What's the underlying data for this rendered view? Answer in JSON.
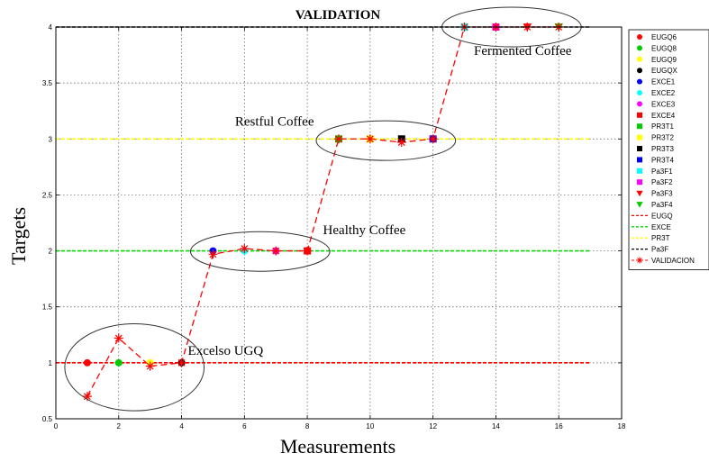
{
  "chart_data": {
    "type": "scatter",
    "title": "VALIDATION",
    "xlabel": "Measurements",
    "ylabel": "Targets",
    "xlim": [
      0,
      18
    ],
    "ylim": [
      0.5,
      4
    ],
    "xticks": [
      0,
      2,
      4,
      6,
      8,
      10,
      12,
      14,
      16,
      18
    ],
    "yticks": [
      0.5,
      1,
      1.5,
      2,
      2.5,
      3,
      3.5,
      4
    ],
    "grid": true,
    "legend_position": "outside-right",
    "point_series": [
      {
        "name": "EUGQ6",
        "x": 1,
        "y": 1,
        "marker": "circle",
        "color": "#ff0000"
      },
      {
        "name": "EUGQ8",
        "x": 2,
        "y": 1,
        "marker": "circle",
        "color": "#00cc00"
      },
      {
        "name": "EUGQ9",
        "x": 3,
        "y": 1,
        "marker": "circle",
        "color": "#ffff00"
      },
      {
        "name": "EUGQX",
        "x": 4,
        "y": 1,
        "marker": "circle",
        "color": "#000000"
      },
      {
        "name": "EXCE1",
        "x": 5,
        "y": 2,
        "marker": "circle",
        "color": "#0000ff"
      },
      {
        "name": "EXCE2",
        "x": 6,
        "y": 2,
        "marker": "circle",
        "color": "#00ffff"
      },
      {
        "name": "EXCE3",
        "x": 7,
        "y": 2,
        "marker": "circle",
        "color": "#ff00ff"
      },
      {
        "name": "EXCE4",
        "x": 8,
        "y": 2,
        "marker": "square",
        "color": "#ff0000"
      },
      {
        "name": "PR3T1",
        "x": 9,
        "y": 3,
        "marker": "square",
        "color": "#00cc00"
      },
      {
        "name": "PR3T2",
        "x": 10,
        "y": 3,
        "marker": "square",
        "color": "#ffff00"
      },
      {
        "name": "PR3T3",
        "x": 11,
        "y": 3,
        "marker": "square",
        "color": "#000000"
      },
      {
        "name": "PR3T4",
        "x": 12,
        "y": 3,
        "marker": "square",
        "color": "#0000ff"
      },
      {
        "name": "Pa3F1",
        "x": 13,
        "y": 4,
        "marker": "square",
        "color": "#00ffff"
      },
      {
        "name": "Pa3F2",
        "x": 14,
        "y": 4,
        "marker": "square",
        "color": "#ff00ff"
      },
      {
        "name": "Pa3F3",
        "x": 15,
        "y": 4,
        "marker": "triangle-down",
        "color": "#ff0000"
      },
      {
        "name": "Pa3F4",
        "x": 16,
        "y": 4,
        "marker": "triangle-down",
        "color": "#00cc00"
      }
    ],
    "reference_lines": [
      {
        "name": "EUGQ",
        "y": 1,
        "x_range": [
          0,
          17
        ],
        "color": "#ff0000"
      },
      {
        "name": "EXCE",
        "y": 2,
        "x_range": [
          0,
          17
        ],
        "color": "#00dd00"
      },
      {
        "name": "PR3T",
        "y": 3,
        "x_range": [
          0,
          17
        ],
        "color": "#ffff00"
      },
      {
        "name": "Pa3F",
        "y": 4,
        "x_range": [
          0,
          17
        ],
        "color": "#000000"
      }
    ],
    "validation_series": {
      "name": "VALIDACION",
      "color": "#ff0000",
      "x": [
        1,
        2,
        3,
        4,
        5,
        6,
        7,
        8,
        9,
        10,
        11,
        12,
        13,
        14,
        15,
        16
      ],
      "y": [
        0.7,
        1.22,
        0.97,
        1.0,
        1.97,
        2.02,
        2.0,
        2.0,
        3.0,
        3.0,
        2.97,
        3.0,
        4.0,
        4.0,
        4.0,
        4.0
      ]
    },
    "annotations": [
      {
        "text": "Excelso UGQ",
        "x": 4.2,
        "y": 1.07
      },
      {
        "text": "Healthy Coffee",
        "x": 8.5,
        "y": 2.15
      },
      {
        "text": "Restful Coffee",
        "x": 5.7,
        "y": 3.12
      },
      {
        "text": "Fermented Coffee",
        "x": 13.3,
        "y": 3.75
      }
    ]
  }
}
